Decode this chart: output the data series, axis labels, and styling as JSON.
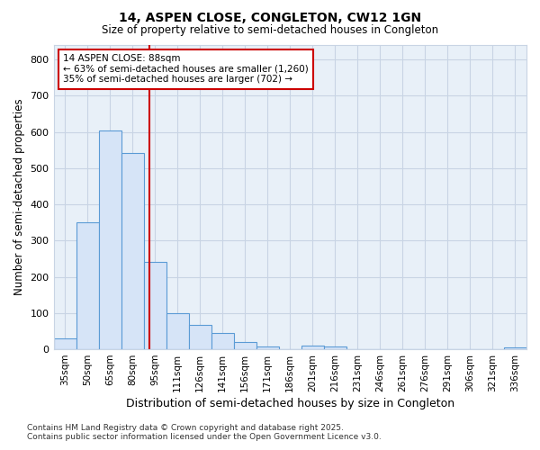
{
  "title1": "14, ASPEN CLOSE, CONGLETON, CW12 1GN",
  "title2": "Size of property relative to semi-detached houses in Congleton",
  "xlabel": "Distribution of semi-detached houses by size in Congleton",
  "ylabel": "Number of semi-detached properties",
  "categories": [
    "35sqm",
    "50sqm",
    "65sqm",
    "80sqm",
    "95sqm",
    "111sqm",
    "126sqm",
    "141sqm",
    "156sqm",
    "171sqm",
    "186sqm",
    "201sqm",
    "216sqm",
    "231sqm",
    "246sqm",
    "261sqm",
    "276sqm",
    "291sqm",
    "306sqm",
    "321sqm",
    "336sqm"
  ],
  "values": [
    30,
    350,
    605,
    543,
    240,
    100,
    67,
    46,
    20,
    8,
    0,
    10,
    8,
    0,
    0,
    0,
    0,
    0,
    0,
    0,
    5
  ],
  "bar_color": "#d6e4f7",
  "bar_edge_color": "#5b9bd5",
  "grid_color": "#c8d4e4",
  "background_color": "#ffffff",
  "plot_bg_color": "#e8f0f8",
  "red_line_x": 3.75,
  "annotation_title": "14 ASPEN CLOSE: 88sqm",
  "annotation_line1": "← 63% of semi-detached houses are smaller (1,260)",
  "annotation_line2": "35% of semi-detached houses are larger (702) →",
  "annotation_box_color": "#ffffff",
  "annotation_border_color": "#cc0000",
  "red_line_color": "#cc0000",
  "footer1": "Contains HM Land Registry data © Crown copyright and database right 2025.",
  "footer2": "Contains public sector information licensed under the Open Government Licence v3.0.",
  "ylim": [
    0,
    840
  ],
  "yticks": [
    0,
    100,
    200,
    300,
    400,
    500,
    600,
    700,
    800
  ]
}
